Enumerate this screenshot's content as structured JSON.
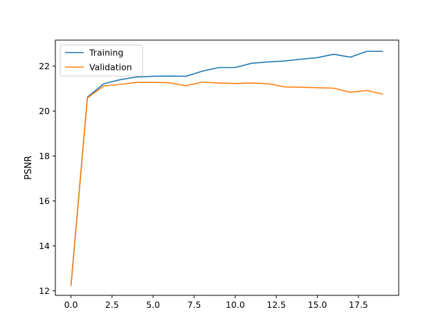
{
  "chart_data": {
    "type": "line",
    "title": "",
    "xlabel": "",
    "ylabel": "PSNR",
    "xlim": [
      -0.95,
      19.95
    ],
    "ylim": [
      11.8,
      23.16
    ],
    "x_ticks": [
      0.0,
      2.5,
      5.0,
      7.5,
      10.0,
      12.5,
      15.0,
      17.5
    ],
    "x_tick_labels": [
      "0.0",
      "2.5",
      "5.0",
      "7.5",
      "10.0",
      "12.5",
      "15.0",
      "17.5"
    ],
    "y_ticks": [
      12,
      14,
      16,
      18,
      20,
      22
    ],
    "y_tick_labels": [
      "12",
      "14",
      "16",
      "18",
      "20",
      "22"
    ],
    "grid": false,
    "legend_position": "top-left",
    "x": [
      0,
      1,
      2,
      3,
      4,
      5,
      6,
      7,
      8,
      9,
      10,
      11,
      12,
      13,
      14,
      15,
      16,
      17,
      18,
      19
    ],
    "series": [
      {
        "name": "Training",
        "color": "#1f77b4",
        "values": [
          12.22,
          20.62,
          21.22,
          21.4,
          21.52,
          21.55,
          21.56,
          21.55,
          21.78,
          21.94,
          21.94,
          22.13,
          22.19,
          22.23,
          22.31,
          22.38,
          22.53,
          22.4,
          22.66,
          22.66
        ]
      },
      {
        "name": "Validation",
        "color": "#ff7f0e",
        "values": [
          12.22,
          20.59,
          21.12,
          21.19,
          21.28,
          21.28,
          21.26,
          21.13,
          21.29,
          21.25,
          21.23,
          21.25,
          21.22,
          21.08,
          21.06,
          21.04,
          21.02,
          20.84,
          20.92,
          20.75
        ]
      }
    ]
  }
}
